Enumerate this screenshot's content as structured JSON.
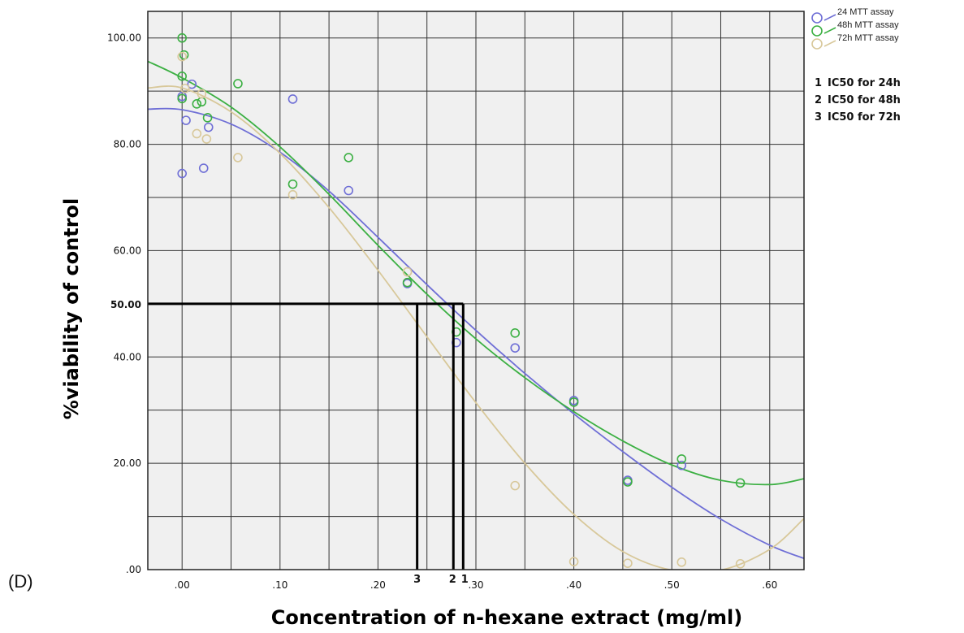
{
  "panel_label": "(D)",
  "chart_data": {
    "type": "scatter",
    "xlabel": "Concentration of n-hexane extract (mg/ml)",
    "ylabel": "%viability of control",
    "xlim": [
      -0.035,
      0.635
    ],
    "ylim": [
      0,
      105
    ],
    "x_ticks": [
      {
        "value": 0.0,
        "label": ".00"
      },
      {
        "value": 0.1,
        "label": ".10"
      },
      {
        "value": 0.2,
        "label": ".20"
      },
      {
        "value": 0.3,
        "label": ".30"
      },
      {
        "value": 0.4,
        "label": ".40"
      },
      {
        "value": 0.5,
        "label": ".50"
      },
      {
        "value": 0.6,
        "label": ".60"
      }
    ],
    "y_ticks": [
      {
        "value": 0,
        "label": ".00"
      },
      {
        "value": 20,
        "label": "20.00"
      },
      {
        "value": 40,
        "label": "40.00"
      },
      {
        "value": 60,
        "label": "60.00"
      },
      {
        "value": 80,
        "label": "80.00"
      },
      {
        "value": 100,
        "label": "100.00"
      }
    ],
    "highlight_y_tick": {
      "value": 50,
      "label": "50.00"
    },
    "grid_x": [
      0.05,
      0.15,
      0.25,
      0.35,
      0.45,
      0.55
    ],
    "grid_y": [
      10,
      30,
      50,
      70,
      90
    ],
    "grid": true,
    "legend_position": "top-right",
    "series": [
      {
        "name": "24 MTT assay",
        "color": "#6f6fd6",
        "points": [
          [
            0.0,
            89
          ],
          [
            0.0,
            74.5
          ],
          [
            0.004,
            84.5
          ],
          [
            0.01,
            91.3
          ],
          [
            0.022,
            75.5
          ],
          [
            0.027,
            83.2
          ],
          [
            0.113,
            88.5
          ],
          [
            0.17,
            71.3
          ],
          [
            0.23,
            53.8
          ],
          [
            0.28,
            42.7
          ],
          [
            0.34,
            41.7
          ],
          [
            0.4,
            31.8
          ],
          [
            0.455,
            16.8
          ],
          [
            0.51,
            19.6
          ]
        ],
        "fit": [
          [
            -0.035,
            86.6
          ],
          [
            0.0,
            86.5
          ],
          [
            0.05,
            83.8
          ],
          [
            0.1,
            78.5
          ],
          [
            0.15,
            71.2
          ],
          [
            0.2,
            62.5
          ],
          [
            0.25,
            53.6
          ],
          [
            0.3,
            45.0
          ],
          [
            0.35,
            36.9
          ],
          [
            0.4,
            29.3
          ],
          [
            0.45,
            22.2
          ],
          [
            0.5,
            15.5
          ],
          [
            0.55,
            9.5
          ],
          [
            0.6,
            4.6
          ],
          [
            0.635,
            2.1
          ]
        ]
      },
      {
        "name": "48h MTT assay",
        "color": "#3cb043",
        "points": [
          [
            0.0,
            100
          ],
          [
            0.0,
            92.8
          ],
          [
            0.002,
            96.8
          ],
          [
            0.0,
            88.6
          ],
          [
            0.015,
            87.6
          ],
          [
            0.02,
            88
          ],
          [
            0.026,
            85
          ],
          [
            0.057,
            91.4
          ],
          [
            0.113,
            72.5
          ],
          [
            0.17,
            77.5
          ],
          [
            0.23,
            54
          ],
          [
            0.28,
            44.7
          ],
          [
            0.34,
            44.5
          ],
          [
            0.4,
            31.5
          ],
          [
            0.455,
            16.5
          ],
          [
            0.51,
            20.8
          ],
          [
            0.57,
            16.3
          ]
        ],
        "fit": [
          [
            -0.035,
            95.6
          ],
          [
            0.0,
            92.5
          ],
          [
            0.05,
            87.0
          ],
          [
            0.1,
            79.5
          ],
          [
            0.15,
            70.6
          ],
          [
            0.2,
            61.0
          ],
          [
            0.25,
            51.8
          ],
          [
            0.3,
            43.4
          ],
          [
            0.35,
            36.1
          ],
          [
            0.4,
            29.7
          ],
          [
            0.45,
            24.2
          ],
          [
            0.5,
            19.7
          ],
          [
            0.55,
            16.8
          ],
          [
            0.6,
            16.0
          ],
          [
            0.635,
            17.1
          ]
        ]
      },
      {
        "name": "72h MTT assay",
        "color": "#d8c89a",
        "points": [
          [
            0.0,
            96.5
          ],
          [
            0.003,
            90.5
          ],
          [
            0.015,
            82
          ],
          [
            0.02,
            89.5
          ],
          [
            0.025,
            81
          ],
          [
            0.057,
            77.5
          ],
          [
            0.113,
            70.5
          ],
          [
            0.23,
            56
          ],
          [
            0.34,
            15.8
          ],
          [
            0.4,
            1.5
          ],
          [
            0.455,
            1.2
          ],
          [
            0.51,
            1.4
          ],
          [
            0.57,
            1.1
          ]
        ],
        "fit": [
          [
            -0.035,
            90.6
          ],
          [
            0.0,
            90.6
          ],
          [
            0.05,
            86.1
          ],
          [
            0.1,
            78.3
          ],
          [
            0.15,
            68.1
          ],
          [
            0.2,
            56.3
          ],
          [
            0.25,
            43.8
          ],
          [
            0.3,
            31.4
          ],
          [
            0.35,
            20.0
          ],
          [
            0.4,
            10.4
          ],
          [
            0.45,
            3.4
          ],
          [
            0.5,
            -0.1
          ],
          [
            0.55,
            -0.1
          ],
          [
            0.6,
            3.8
          ],
          [
            0.635,
            9.6
          ]
        ]
      }
    ],
    "ic50_lines": [
      {
        "marker": "3",
        "x": 0.24
      },
      {
        "marker": "2",
        "x": 0.277
      },
      {
        "marker": "1",
        "x": 0.287
      }
    ],
    "ic50_x_span": [
      -0.035,
      0.287
    ],
    "ic50_y": 50,
    "ic50_legend": [
      {
        "num": "1",
        "text": "IC50 for 24h"
      },
      {
        "num": "2",
        "text": "IC50 for 48h"
      },
      {
        "num": "3",
        "text": "IC50 for 72h"
      }
    ]
  }
}
